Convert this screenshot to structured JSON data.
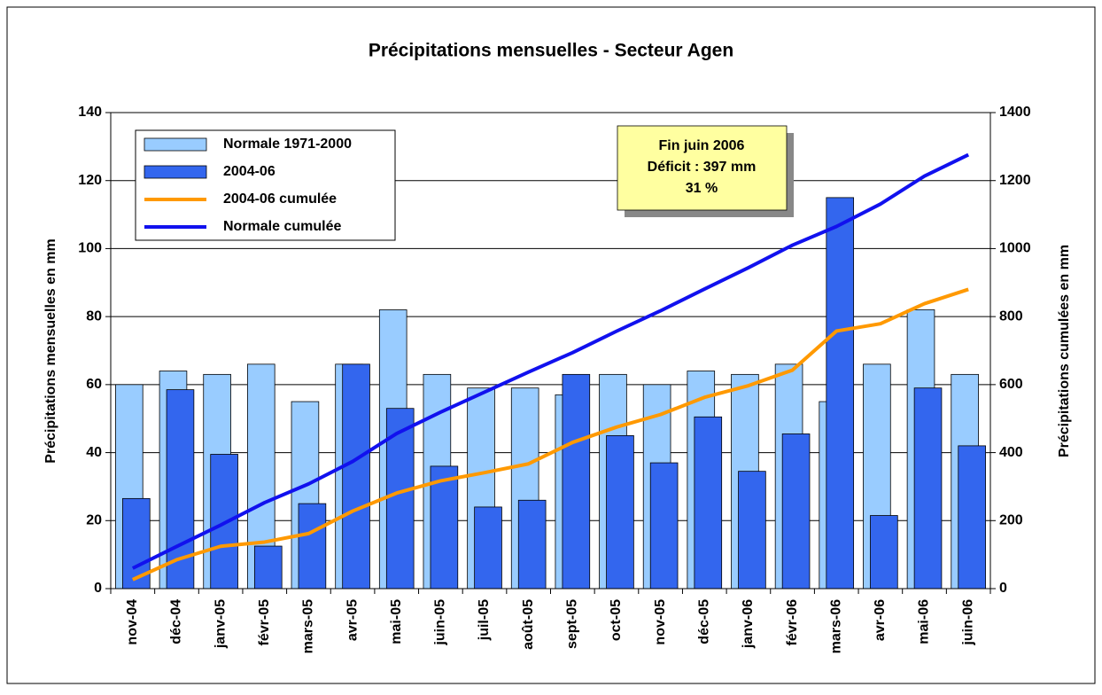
{
  "chart_data": {
    "type": "bar_line",
    "title": "Précipitations mensuelles - Secteur Agen",
    "ylabel": "Précipitations mensuelles en mm",
    "y2label": "Précipitations cumulées en mm",
    "annotation": [
      "Fin juin 2006",
      "Déficit : 397 mm",
      "31 %"
    ],
    "categories": [
      "nov-04",
      "déc-04",
      "janv-05",
      "févr-05",
      "mars-05",
      "avr-05",
      "mai-05",
      "juin-05",
      "juil-05",
      "août-05",
      "sept-05",
      "oct-05",
      "nov-05",
      "déc-05",
      "janv-06",
      "févr-06",
      "mars-06",
      "avr-06",
      "mai-06",
      "juin-06"
    ],
    "series": [
      {
        "name": "Normale 1971-2000",
        "type": "bar",
        "color": "#99ccff",
        "values": [
          60,
          64,
          63,
          66,
          55,
          66,
          82,
          63,
          59,
          59,
          57,
          63,
          60,
          64,
          63,
          66,
          55,
          66,
          82,
          63
        ]
      },
      {
        "name": "2004-06",
        "type": "bar",
        "color": "#3366ee",
        "values": [
          26.5,
          58.5,
          39.5,
          12.5,
          25,
          66,
          53,
          36,
          24,
          26,
          63,
          45,
          37,
          50.5,
          34.5,
          45.5,
          115,
          21.5,
          59,
          42
        ]
      },
      {
        "name": "2004-06 cumulée",
        "type": "line",
        "axis": "y2",
        "color": "#ff9900",
        "values": [
          26.5,
          85,
          124.5,
          137,
          162,
          228,
          281,
          317,
          341,
          367,
          430,
          475,
          512,
          562.5,
          597,
          642.5,
          757.5,
          779,
          838,
          880
        ]
      },
      {
        "name": "Normale cumulée",
        "type": "line",
        "axis": "y2",
        "color": "#1111ee",
        "values": [
          60,
          124,
          187,
          253,
          308,
          374,
          456,
          519,
          578,
          637,
          694,
          757,
          817,
          881,
          944,
          1010,
          1065,
          1131,
          1213,
          1276
        ]
      }
    ],
    "ylim": [
      0,
      140
    ],
    "yticks": [
      0,
      20,
      40,
      60,
      80,
      100,
      120,
      140
    ],
    "y2lim": [
      0,
      1400
    ],
    "y2ticks": [
      0,
      200,
      400,
      600,
      800,
      1000,
      1200,
      1400
    ],
    "grid": true
  }
}
